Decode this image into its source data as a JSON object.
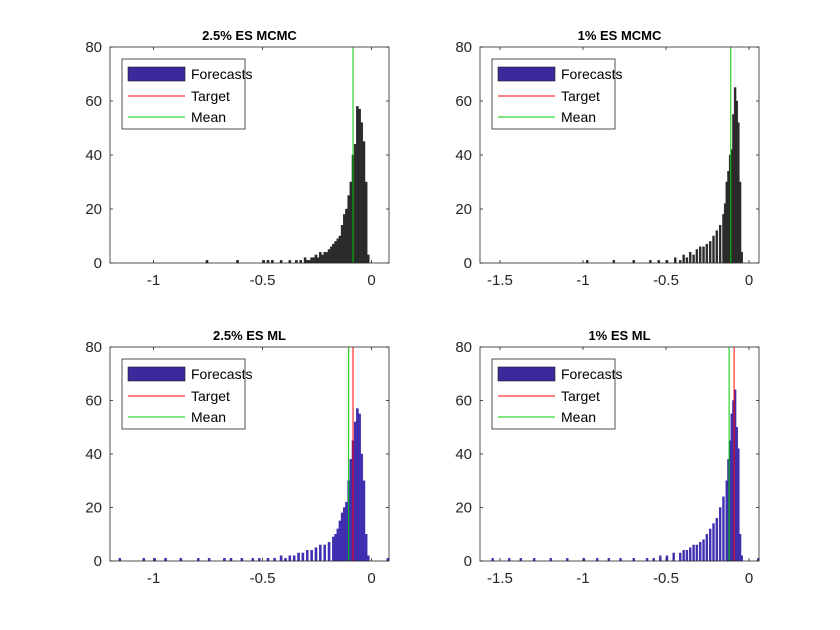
{
  "figure": {
    "background": "#ffffff",
    "legend_labels": [
      "Forecasts",
      "Target",
      "Mean"
    ],
    "colors": {
      "forecasts_dark": "#2b2b2b",
      "forecasts_blue": "#3f2fb0",
      "target": "#ff0000",
      "mean": "#00cc00",
      "legend_patch": "#3a2a9c"
    }
  },
  "chart_data": [
    {
      "type": "bar",
      "title": "2.5% ES MCMC",
      "xlabel": "",
      "ylabel": "",
      "xlim": [
        -1.2,
        0.08
      ],
      "ylim": [
        0,
        80
      ],
      "xticks": [
        -1,
        -0.5,
        0
      ],
      "xtick_labels": [
        "-1",
        "-0.5",
        "0"
      ],
      "yticks": [
        0,
        20,
        40,
        60,
        80
      ],
      "ytick_labels": [
        "0",
        "20",
        "40",
        "60",
        "80"
      ],
      "grid": false,
      "legend": "top-left",
      "bar_color": "#2b2b2b",
      "bin_width": 0.01,
      "series": [
        {
          "name": "Forecasts",
          "bins": [
            [
              -0.76,
              1
            ],
            [
              -0.62,
              1
            ],
            [
              -0.5,
              1
            ],
            [
              -0.48,
              1
            ],
            [
              -0.46,
              1
            ],
            [
              -0.42,
              1
            ],
            [
              -0.38,
              1
            ],
            [
              -0.35,
              1
            ],
            [
              -0.33,
              1
            ],
            [
              -0.31,
              2
            ],
            [
              -0.3,
              1
            ],
            [
              -0.29,
              1
            ],
            [
              -0.28,
              2
            ],
            [
              -0.27,
              2
            ],
            [
              -0.26,
              3
            ],
            [
              -0.25,
              2
            ],
            [
              -0.24,
              4
            ],
            [
              -0.23,
              3
            ],
            [
              -0.22,
              4
            ],
            [
              -0.21,
              4
            ],
            [
              -0.2,
              5
            ],
            [
              -0.19,
              6
            ],
            [
              -0.18,
              7
            ],
            [
              -0.17,
              8
            ],
            [
              -0.16,
              9
            ],
            [
              -0.15,
              10
            ],
            [
              -0.14,
              14
            ],
            [
              -0.13,
              18
            ],
            [
              -0.12,
              20
            ],
            [
              -0.11,
              25
            ],
            [
              -0.1,
              30
            ],
            [
              -0.09,
              40
            ],
            [
              -0.08,
              44
            ],
            [
              -0.07,
              58
            ],
            [
              -0.06,
              57
            ],
            [
              -0.05,
              52
            ],
            [
              -0.04,
              45
            ],
            [
              -0.03,
              30
            ],
            [
              -0.02,
              3
            ]
          ]
        },
        {
          "name": "Target",
          "x": null
        },
        {
          "name": "Mean",
          "x": -0.085
        }
      ]
    },
    {
      "type": "bar",
      "title": "1% ES MCMC",
      "xlabel": "",
      "ylabel": "",
      "xlim": [
        -1.62,
        0.06
      ],
      "ylim": [
        0,
        80
      ],
      "xticks": [
        -1.5,
        -1,
        -0.5,
        0
      ],
      "xtick_labels": [
        "-1.5",
        "-1",
        "-0.5",
        "0"
      ],
      "yticks": [
        0,
        20,
        40,
        60,
        80
      ],
      "ytick_labels": [
        "0",
        "20",
        "40",
        "60",
        "80"
      ],
      "grid": false,
      "legend": "top-left",
      "bar_color": "#2b2b2b",
      "bin_width": 0.012,
      "series": [
        {
          "name": "Forecasts",
          "bins": [
            [
              -0.98,
              1
            ],
            [
              -0.82,
              1
            ],
            [
              -0.7,
              1
            ],
            [
              -0.6,
              1
            ],
            [
              -0.55,
              1
            ],
            [
              -0.5,
              1
            ],
            [
              -0.45,
              2
            ],
            [
              -0.42,
              1
            ],
            [
              -0.4,
              3
            ],
            [
              -0.38,
              2
            ],
            [
              -0.36,
              4
            ],
            [
              -0.34,
              3
            ],
            [
              -0.32,
              5
            ],
            [
              -0.3,
              6
            ],
            [
              -0.28,
              6
            ],
            [
              -0.26,
              7
            ],
            [
              -0.24,
              8
            ],
            [
              -0.22,
              10
            ],
            [
              -0.2,
              12
            ],
            [
              -0.18,
              14
            ],
            [
              -0.16,
              18
            ],
            [
              -0.15,
              22
            ],
            [
              -0.14,
              30
            ],
            [
              -0.13,
              34
            ],
            [
              -0.12,
              40
            ],
            [
              -0.11,
              42
            ],
            [
              -0.1,
              55
            ],
            [
              -0.09,
              65
            ],
            [
              -0.08,
              60
            ],
            [
              -0.07,
              52
            ],
            [
              -0.06,
              30
            ],
            [
              -0.05,
              4
            ]
          ]
        },
        {
          "name": "Target",
          "x": null
        },
        {
          "name": "Mean",
          "x": -0.11
        }
      ]
    },
    {
      "type": "bar",
      "title": "2.5% ES ML",
      "xlabel": "",
      "ylabel": "",
      "xlim": [
        -1.2,
        0.08
      ],
      "ylim": [
        0,
        80
      ],
      "xticks": [
        -1,
        -0.5,
        0
      ],
      "xtick_labels": [
        "-1",
        "-0.5",
        "0"
      ],
      "yticks": [
        0,
        20,
        40,
        60,
        80
      ],
      "ytick_labels": [
        "0",
        "20",
        "40",
        "60",
        "80"
      ],
      "grid": false,
      "legend": "top-left",
      "bar_color": "#3f2fb0",
      "bin_width": 0.01,
      "series": [
        {
          "name": "Forecasts",
          "bins": [
            [
              -1.16,
              1
            ],
            [
              -1.05,
              1
            ],
            [
              -1.0,
              1
            ],
            [
              -0.95,
              1
            ],
            [
              -0.88,
              1
            ],
            [
              -0.8,
              1
            ],
            [
              -0.75,
              1
            ],
            [
              -0.68,
              1
            ],
            [
              -0.65,
              1
            ],
            [
              -0.6,
              1
            ],
            [
              -0.55,
              1
            ],
            [
              -0.52,
              1
            ],
            [
              -0.48,
              1
            ],
            [
              -0.45,
              1
            ],
            [
              -0.42,
              2
            ],
            [
              -0.4,
              1
            ],
            [
              -0.38,
              2
            ],
            [
              -0.36,
              2
            ],
            [
              -0.34,
              3
            ],
            [
              -0.32,
              3
            ],
            [
              -0.3,
              4
            ],
            [
              -0.28,
              4
            ],
            [
              -0.26,
              5
            ],
            [
              -0.24,
              6
            ],
            [
              -0.22,
              6
            ],
            [
              -0.2,
              7
            ],
            [
              -0.18,
              9
            ],
            [
              -0.17,
              10
            ],
            [
              -0.16,
              12
            ],
            [
              -0.15,
              15
            ],
            [
              -0.14,
              18
            ],
            [
              -0.13,
              20
            ],
            [
              -0.12,
              22
            ],
            [
              -0.11,
              30
            ],
            [
              -0.1,
              38
            ],
            [
              -0.09,
              45
            ],
            [
              -0.08,
              52
            ],
            [
              -0.07,
              57
            ],
            [
              -0.06,
              55
            ],
            [
              -0.05,
              40
            ],
            [
              -0.04,
              30
            ],
            [
              -0.03,
              10
            ],
            [
              -0.02,
              2
            ],
            [
              0.07,
              1
            ]
          ]
        },
        {
          "name": "Target",
          "x": -0.085
        },
        {
          "name": "Mean",
          "x": -0.105
        }
      ]
    },
    {
      "type": "bar",
      "title": "1% ES ML",
      "xlabel": "",
      "ylabel": "",
      "xlim": [
        -1.62,
        0.06
      ],
      "ylim": [
        0,
        80
      ],
      "xticks": [
        -1.5,
        -1,
        -0.5,
        0
      ],
      "xtick_labels": [
        "-1.5",
        "-1",
        "-0.5",
        "0"
      ],
      "yticks": [
        0,
        20,
        40,
        60,
        80
      ],
      "ytick_labels": [
        "0",
        "20",
        "40",
        "60",
        "80"
      ],
      "grid": false,
      "legend": "top-left",
      "bar_color": "#3f2fb0",
      "bin_width": 0.012,
      "series": [
        {
          "name": "Forecasts",
          "bins": [
            [
              -1.55,
              1
            ],
            [
              -1.45,
              1
            ],
            [
              -1.38,
              1
            ],
            [
              -1.3,
              1
            ],
            [
              -1.2,
              1
            ],
            [
              -1.1,
              1
            ],
            [
              -1.0,
              1
            ],
            [
              -0.92,
              1
            ],
            [
              -0.85,
              1
            ],
            [
              -0.78,
              1
            ],
            [
              -0.7,
              1
            ],
            [
              -0.62,
              1
            ],
            [
              -0.58,
              1
            ],
            [
              -0.54,
              2
            ],
            [
              -0.5,
              2
            ],
            [
              -0.46,
              3
            ],
            [
              -0.42,
              3
            ],
            [
              -0.4,
              4
            ],
            [
              -0.38,
              4
            ],
            [
              -0.36,
              5
            ],
            [
              -0.34,
              6
            ],
            [
              -0.32,
              6
            ],
            [
              -0.3,
              7
            ],
            [
              -0.28,
              8
            ],
            [
              -0.26,
              10
            ],
            [
              -0.24,
              12
            ],
            [
              -0.22,
              14
            ],
            [
              -0.2,
              16
            ],
            [
              -0.18,
              20
            ],
            [
              -0.16,
              24
            ],
            [
              -0.14,
              30
            ],
            [
              -0.13,
              38
            ],
            [
              -0.12,
              45
            ],
            [
              -0.11,
              55
            ],
            [
              -0.1,
              60
            ],
            [
              -0.09,
              64
            ],
            [
              -0.08,
              50
            ],
            [
              -0.07,
              42
            ],
            [
              -0.06,
              10
            ],
            [
              -0.05,
              2
            ],
            [
              0.05,
              1
            ]
          ]
        },
        {
          "name": "Target",
          "x": -0.09
        },
        {
          "name": "Mean",
          "x": -0.12
        }
      ]
    }
  ]
}
